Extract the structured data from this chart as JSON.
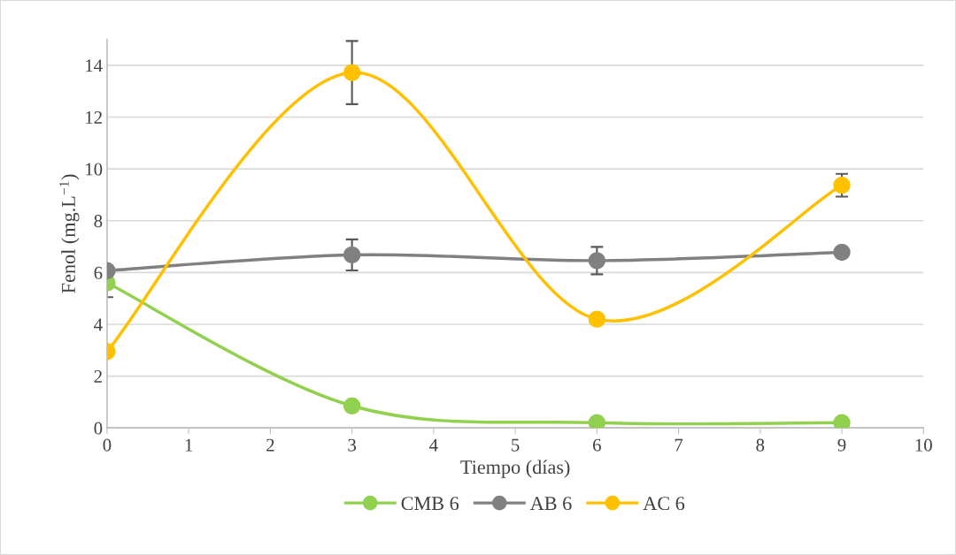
{
  "chart_data": {
    "type": "line",
    "xlabel": "Tiempo (días)",
    "ylabel": "Fenol (mg.L$^{−1}$)",
    "x": [
      0,
      3,
      6,
      9
    ],
    "series": [
      {
        "name": "CMB 6",
        "color": "#92d050",
        "values": [
          5.6,
          0.85,
          0.2,
          0.2
        ],
        "errors": [
          0.55,
          null,
          null,
          null
        ]
      },
      {
        "name": "AB 6",
        "color": "#808080",
        "values": [
          6.07,
          6.68,
          6.46,
          6.78
        ],
        "errors": [
          null,
          0.6,
          0.53,
          null
        ]
      },
      {
        "name": "AC 6",
        "color": "#ffc000",
        "values": [
          2.95,
          13.72,
          4.2,
          9.37
        ],
        "errors": [
          null,
          1.22,
          null,
          0.44
        ]
      }
    ],
    "xlim": [
      0,
      10
    ],
    "xticks": [
      0,
      1,
      2,
      3,
      4,
      5,
      6,
      7,
      8,
      9,
      10
    ],
    "ylim": [
      0,
      15
    ],
    "yticks": [
      0,
      2,
      4,
      6,
      8,
      10,
      12,
      14
    ],
    "grid": "y",
    "legend": "bottom",
    "marker": "circle",
    "line_style": "solid"
  }
}
